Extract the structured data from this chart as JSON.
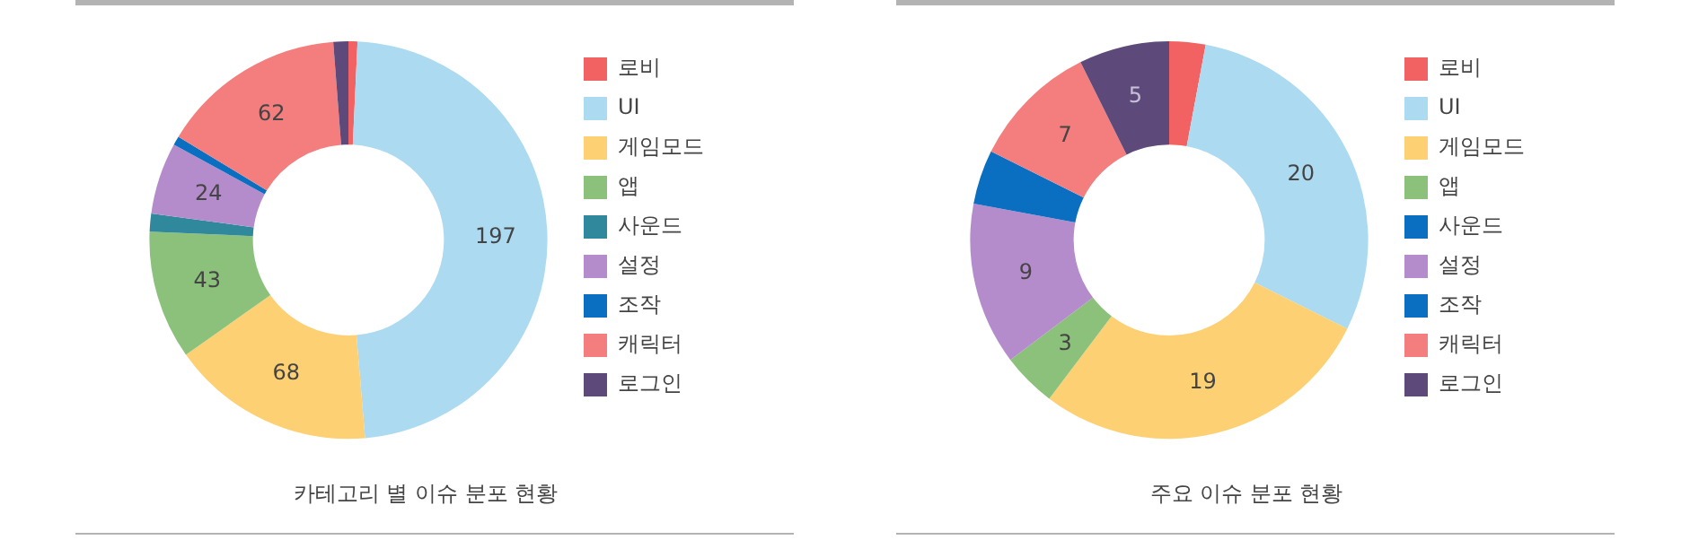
{
  "chart_data": [
    {
      "type": "donut",
      "title": "카테고리 별 이슈 분포 현황",
      "categories": [
        "로비",
        "UI",
        "게임모드",
        "앱",
        "사운드",
        "설정",
        "조작",
        "캐릭터",
        "로그인"
      ],
      "values": [
        3,
        197,
        68,
        43,
        6,
        24,
        3,
        62,
        5
      ],
      "colors": [
        "#f26262",
        "#acdaf1",
        "#fdd074",
        "#8cc17c",
        "#2f889c",
        "#b58ccb",
        "#0a6fc0",
        "#f47d7d",
        "#5e4a7a"
      ],
      "value_labels": [
        null,
        "197",
        "68",
        "43",
        null,
        "24",
        null,
        "62",
        null
      ],
      "legend": "right"
    },
    {
      "type": "donut",
      "title": "주요 이슈 분포 현황",
      "categories": [
        "로비",
        "UI",
        "게임모드",
        "앱",
        "사운드",
        "설정",
        "조작",
        "캐릭터",
        "로그인"
      ],
      "values": [
        2,
        20,
        19,
        3,
        0,
        9,
        3,
        7,
        5
      ],
      "colors": [
        "#f26262",
        "#acdaf1",
        "#fdd074",
        "#8cc17c",
        "#0a6fc0",
        "#b58ccb",
        "#0a6fc0",
        "#f47d7d",
        "#5e4a7a"
      ],
      "value_labels": [
        null,
        "20",
        "19",
        "3",
        null,
        "9",
        null,
        "7",
        "5"
      ],
      "legend": "right"
    }
  ]
}
